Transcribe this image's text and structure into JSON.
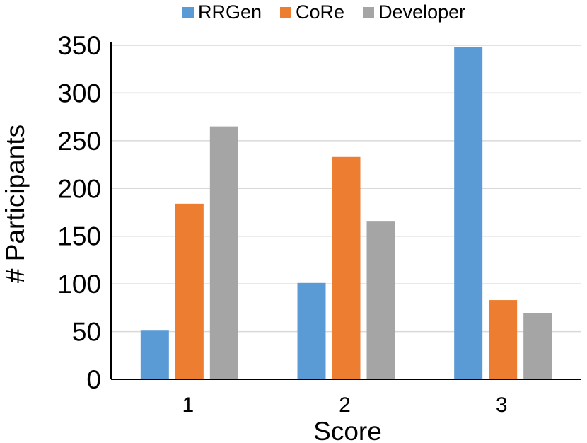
{
  "chart_data": {
    "type": "bar",
    "title": "",
    "xlabel": "Score",
    "ylabel": "# Participants",
    "categories": [
      "1",
      "2",
      "3"
    ],
    "ylim": [
      0,
      350
    ],
    "yticks": [
      "0",
      "50",
      "100",
      "150",
      "200",
      "250",
      "300",
      "350"
    ],
    "grid": true,
    "legend_position": "top",
    "series": [
      {
        "name": "RRGen",
        "color": "#5b9bd5",
        "values": [
          51,
          101,
          348
        ]
      },
      {
        "name": "CoRe",
        "color": "#ed7d31",
        "values": [
          184,
          233,
          83
        ]
      },
      {
        "name": "Developer",
        "color": "#a5a5a5",
        "values": [
          265,
          166,
          69
        ]
      }
    ]
  }
}
